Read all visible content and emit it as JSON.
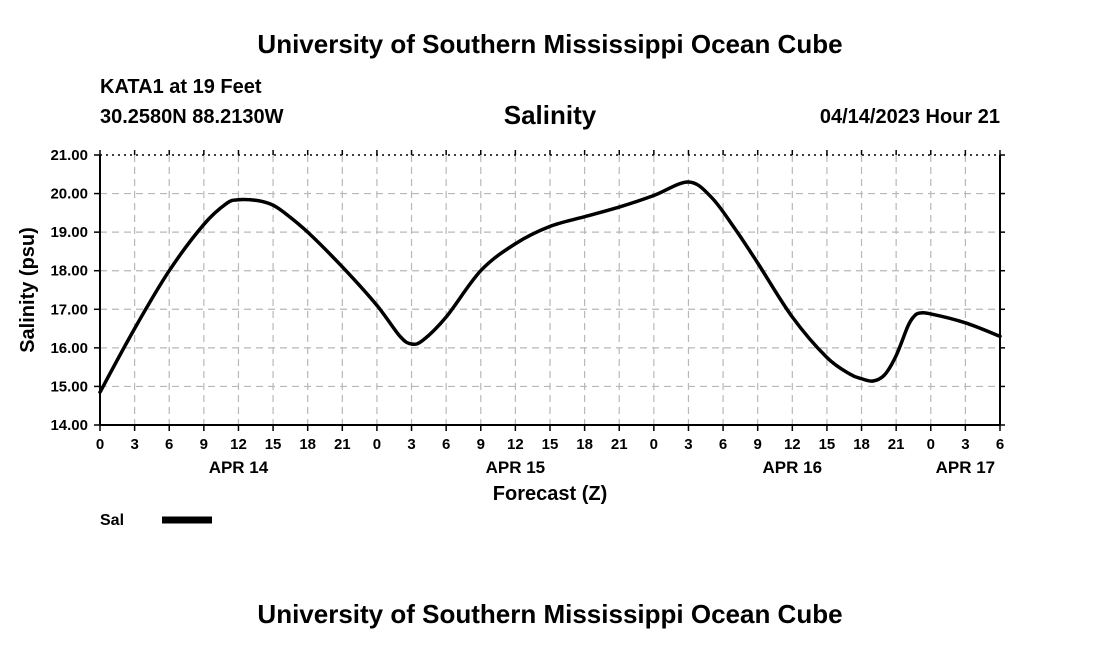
{
  "header": {
    "title": "University of Southern Mississippi Ocean Cube",
    "station": "KATA1 at 19 Feet",
    "coords": "30.2580N  88.2130W",
    "plot_title": "Salinity",
    "forecast_time": "04/14/2023 Hour 21"
  },
  "footer": {
    "title": "University of Southern Mississippi Ocean Cube"
  },
  "chart_data": {
    "type": "line",
    "xlabel": "Forecast (Z)",
    "ylabel": "Salinity (psu)",
    "ylim": [
      14.0,
      21.0
    ],
    "y_ticks": [
      "14.00",
      "15.00",
      "16.00",
      "17.00",
      "18.00",
      "19.00",
      "20.00",
      "21.00"
    ],
    "x_range_hours": [
      0,
      78
    ],
    "x_tick_labels": [
      "0",
      "3",
      "6",
      "9",
      "12",
      "15",
      "18",
      "21",
      "0",
      "3",
      "6",
      "9",
      "12",
      "15",
      "18",
      "21",
      "0",
      "3",
      "6",
      "9",
      "12",
      "15",
      "18",
      "21",
      "0",
      "3",
      "6"
    ],
    "date_labels": [
      {
        "label": "APR 14",
        "hour": 12
      },
      {
        "label": "APR 15",
        "hour": 36
      },
      {
        "label": "APR 16",
        "hour": 60
      },
      {
        "label": "APR 17",
        "hour": 75
      }
    ],
    "grid": true,
    "line_color": "#000000",
    "series": [
      {
        "name": "Sal",
        "x": [
          0,
          3,
          6,
          9,
          11,
          12,
          13,
          14,
          15,
          16,
          18,
          21,
          24,
          26,
          27,
          28,
          30,
          33,
          36,
          39,
          42,
          45,
          48,
          51,
          53,
          55,
          57,
          60,
          63,
          65,
          66,
          67,
          68,
          69,
          70,
          70.5,
          71,
          72,
          75,
          78
        ],
        "y": [
          14.85,
          16.5,
          18.0,
          19.2,
          19.75,
          19.84,
          19.84,
          19.8,
          19.7,
          19.5,
          19.0,
          18.1,
          17.1,
          16.3,
          16.1,
          16.2,
          16.8,
          18.0,
          18.7,
          19.15,
          19.4,
          19.65,
          19.95,
          20.3,
          19.9,
          19.1,
          18.2,
          16.8,
          15.75,
          15.32,
          15.2,
          15.14,
          15.3,
          15.8,
          16.55,
          16.8,
          16.9,
          16.88,
          16.65,
          16.3
        ]
      }
    ],
    "legend": {
      "label": "Sal",
      "position": "bottom-left"
    }
  }
}
